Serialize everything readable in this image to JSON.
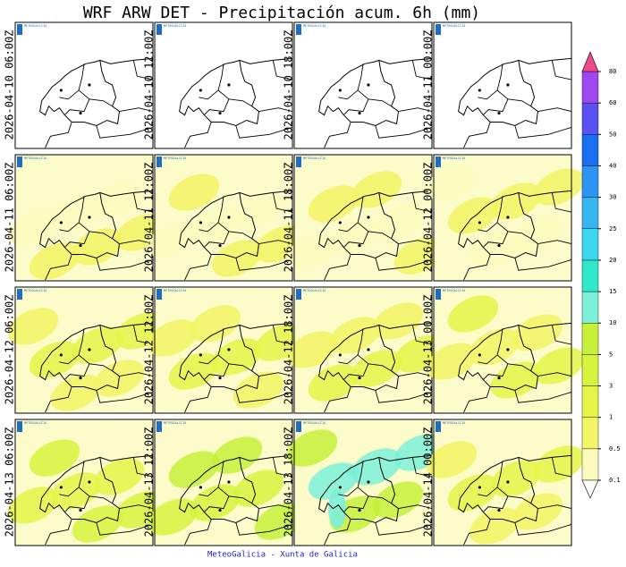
{
  "header": {
    "title": "WRF ARW DET  -  Precipitación acum. 6h (mm)"
  },
  "panels": [
    {
      "label": "2026-04-10 06:00Z"
    },
    {
      "label": "2026-04-10 12:00Z"
    },
    {
      "label": "2026-04-10 18:00Z"
    },
    {
      "label": "2026-04-11 00:00Z"
    },
    {
      "label": "2026-04-11 06:00Z"
    },
    {
      "label": "2026-04-11 12:00Z"
    },
    {
      "label": "2026-04-11 18:00Z"
    },
    {
      "label": "2026-04-12 00:00Z"
    },
    {
      "label": "2026-04-12 06:00Z"
    },
    {
      "label": "2026-04-12 12:00Z"
    },
    {
      "label": "2026-04-12 18:00Z"
    },
    {
      "label": "2026-04-13 00:00Z"
    },
    {
      "label": "2026-04-13 06:00Z"
    },
    {
      "label": "2026-04-13 12:00Z"
    },
    {
      "label": "2026-04-13 18:00Z"
    },
    {
      "label": "2026-04-14 00:00Z"
    }
  ],
  "logo_text": "METEOGALICIA",
  "colorbar": {
    "levels": [
      0.1,
      0.5,
      1,
      3,
      5,
      10,
      15,
      20,
      25,
      30,
      40,
      50,
      60,
      80
    ],
    "colors": [
      "#fbfbbe",
      "#f2f564",
      "#e4f548",
      "#d6f33e",
      "#c6f03a",
      "#7cf0d8",
      "#2ee8c8",
      "#3cd6ee",
      "#36b6f0",
      "#2c94f2",
      "#1a6ef0",
      "#5a52f0",
      "#a048f0"
    ],
    "under_color": "#ffffff",
    "over_color": "#ee4a8a"
  },
  "footer": "MeteoGalicia - Xunta de Galicia"
}
